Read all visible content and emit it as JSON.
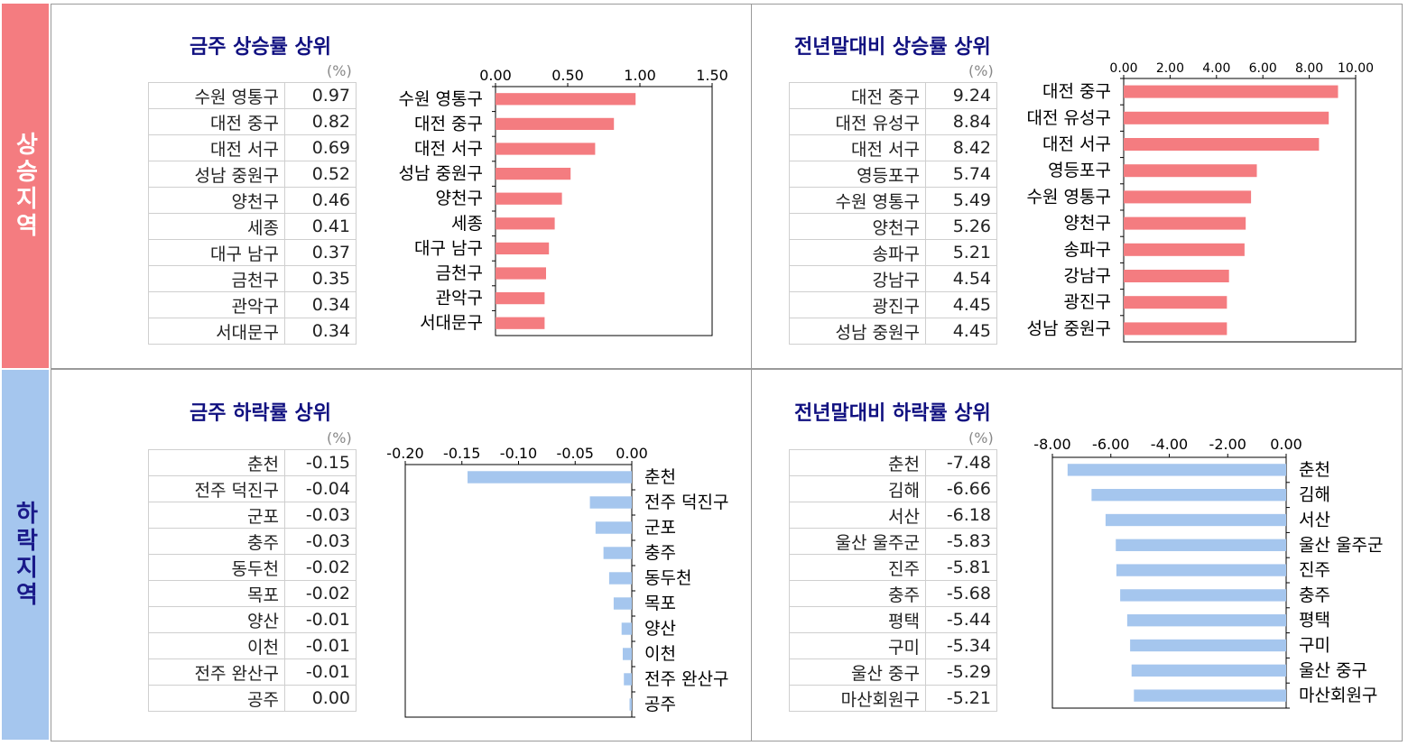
{
  "sections": {
    "rise_label": "상승지역",
    "fall_label": "하락지역",
    "rise_color": "#f47c80",
    "fall_color": "#a5c6ee"
  },
  "panels": [
    {
      "id": "p1",
      "title": "금주 상승률 상위",
      "unit": "(%)",
      "rows": [
        {
          "name": "수원 영통구",
          "value": "0.97"
        },
        {
          "name": "대전 중구",
          "value": "0.82"
        },
        {
          "name": "대전 서구",
          "value": "0.69"
        },
        {
          "name": "성남 중원구",
          "value": "0.52"
        },
        {
          "name": "양천구",
          "value": "0.46"
        },
        {
          "name": "세종",
          "value": "0.41"
        },
        {
          "name": "대구 남구",
          "value": "0.37"
        },
        {
          "name": "금천구",
          "value": "0.35"
        },
        {
          "name": "관악구",
          "value": "0.34"
        },
        {
          "name": "서대문구",
          "value": "0.34"
        }
      ]
    },
    {
      "id": "p2",
      "title": "전년말대비 상승률 상위",
      "unit": "(%)",
      "rows": [
        {
          "name": "대전 중구",
          "value": "9.24"
        },
        {
          "name": "대전 유성구",
          "value": "8.84"
        },
        {
          "name": "대전 서구",
          "value": "8.42"
        },
        {
          "name": "영등포구",
          "value": "5.74"
        },
        {
          "name": "수원 영통구",
          "value": "5.49"
        },
        {
          "name": "양천구",
          "value": "5.26"
        },
        {
          "name": "송파구",
          "value": "5.21"
        },
        {
          "name": "강남구",
          "value": "4.54"
        },
        {
          "name": "광진구",
          "value": "4.45"
        },
        {
          "name": "성남 중원구",
          "value": "4.45"
        }
      ]
    },
    {
      "id": "p3",
      "title": "금주 하락률 상위",
      "unit": "(%)",
      "rows": [
        {
          "name": "춘천",
          "value": "-0.15"
        },
        {
          "name": "전주 덕진구",
          "value": "-0.04"
        },
        {
          "name": "군포",
          "value": "-0.03"
        },
        {
          "name": "충주",
          "value": "-0.03"
        },
        {
          "name": "동두천",
          "value": "-0.02"
        },
        {
          "name": "목포",
          "value": "-0.02"
        },
        {
          "name": "양산",
          "value": "-0.01"
        },
        {
          "name": "이천",
          "value": "-0.01"
        },
        {
          "name": "전주 완산구",
          "value": "-0.01"
        },
        {
          "name": "공주",
          "value": "0.00"
        }
      ]
    },
    {
      "id": "p4",
      "title": "전년말대비 하락률 상위",
      "unit": "(%)",
      "rows": [
        {
          "name": "춘천",
          "value": "-7.48"
        },
        {
          "name": "김해",
          "value": "-6.66"
        },
        {
          "name": "서산",
          "value": "-6.18"
        },
        {
          "name": "울산 울주군",
          "value": "-5.83"
        },
        {
          "name": "진주",
          "value": "-5.81"
        },
        {
          "name": "충주",
          "value": "-5.68"
        },
        {
          "name": "평택",
          "value": "-5.44"
        },
        {
          "name": "구미",
          "value": "-5.34"
        },
        {
          "name": "울산 중구",
          "value": "-5.29"
        },
        {
          "name": "마산회원구",
          "value": "-5.21"
        }
      ]
    }
  ],
  "chart_data": [
    {
      "type": "bar",
      "orientation": "horizontal",
      "title": "금주 상승률 상위",
      "categories": [
        "수원 영통구",
        "대전 중구",
        "대전 서구",
        "성남 중원구",
        "양천구",
        "세종",
        "대구 남구",
        "금천구",
        "관악구",
        "서대문구"
      ],
      "values": [
        0.97,
        0.82,
        0.69,
        0.52,
        0.46,
        0.41,
        0.37,
        0.35,
        0.34,
        0.34
      ],
      "xlim": [
        0,
        1.5
      ],
      "ticks": [
        "0.00",
        "0.50",
        "1.00",
        "1.50"
      ],
      "tick_values": [
        0,
        0.5,
        1.0,
        1.5
      ],
      "color": "#f47c80",
      "labels_side": "left"
    },
    {
      "type": "bar",
      "orientation": "horizontal",
      "title": "전년말대비 상승률 상위",
      "categories": [
        "대전 중구",
        "대전 유성구",
        "대전 서구",
        "영등포구",
        "수원 영통구",
        "양천구",
        "송파구",
        "강남구",
        "광진구",
        "성남 중원구"
      ],
      "values": [
        9.24,
        8.84,
        8.42,
        5.74,
        5.49,
        5.26,
        5.21,
        4.54,
        4.45,
        4.45
      ],
      "xlim": [
        0,
        10
      ],
      "ticks": [
        "0.00",
        "2.00",
        "4.00",
        "6.00",
        "8.00",
        "10.00"
      ],
      "tick_values": [
        0,
        2,
        4,
        6,
        8,
        10
      ],
      "color": "#f47c80",
      "labels_side": "left"
    },
    {
      "type": "bar",
      "orientation": "horizontal",
      "title": "금주 하락률 상위",
      "categories": [
        "춘천",
        "전주 덕진구",
        "군포",
        "충주",
        "동두천",
        "목포",
        "양산",
        "이천",
        "전주 완산구",
        "공주"
      ],
      "values": [
        -0.145,
        -0.037,
        -0.032,
        -0.025,
        -0.02,
        -0.016,
        -0.009,
        -0.008,
        -0.007,
        -0.002
      ],
      "xlim": [
        -0.2,
        0
      ],
      "ticks": [
        "-0.20",
        "-0.15",
        "-0.10",
        "-0.05",
        "0.00"
      ],
      "tick_values": [
        -0.2,
        -0.15,
        -0.1,
        -0.05,
        0
      ],
      "color": "#a5c6ee",
      "labels_side": "right"
    },
    {
      "type": "bar",
      "orientation": "horizontal",
      "title": "전년말대비 하락률 상위",
      "categories": [
        "춘천",
        "김해",
        "서산",
        "울산 울주군",
        "진주",
        "충주",
        "평택",
        "구미",
        "울산 중구",
        "마산회원구"
      ],
      "values": [
        -7.48,
        -6.66,
        -6.18,
        -5.83,
        -5.81,
        -5.68,
        -5.44,
        -5.34,
        -5.29,
        -5.21
      ],
      "xlim": [
        -8,
        0
      ],
      "ticks": [
        "-8.00",
        "-6.00",
        "-4.00",
        "-2.00",
        "0.00"
      ],
      "tick_values": [
        -8,
        -6,
        -4,
        -2,
        0
      ],
      "color": "#a5c6ee",
      "labels_side": "right"
    }
  ]
}
